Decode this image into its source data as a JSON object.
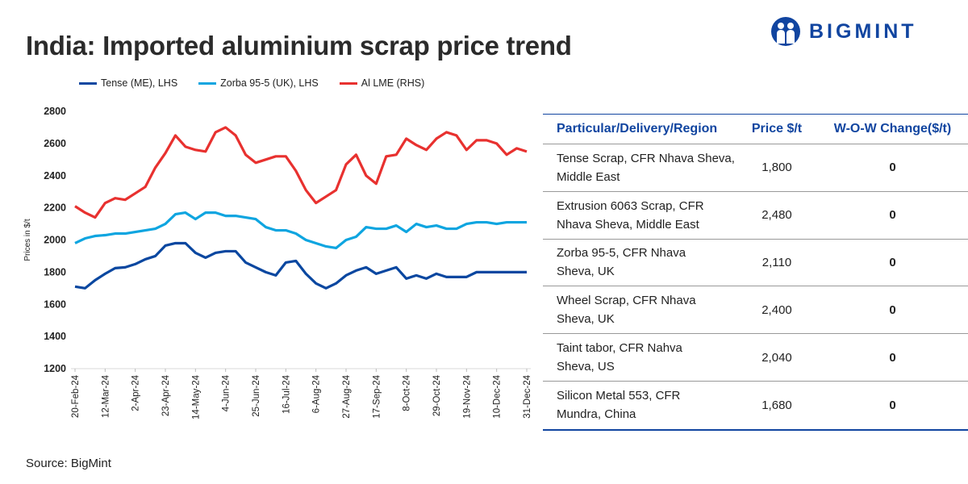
{
  "title": "India: Imported aluminium scrap price trend",
  "logo": "BIGMINT",
  "source": "Source: BigMint",
  "colors": {
    "tense": "#0a47a0",
    "zorba": "#0ea5e0",
    "lme": "#e8312f",
    "accent": "#1145a0"
  },
  "table": {
    "headers": [
      "Particular/Delivery/Region",
      "Price $/t",
      "W-O-W Change($/t)"
    ],
    "rows": [
      {
        "particular": [
          "Tense Scrap, CFR Nhava Sheva,",
          "Middle East"
        ],
        "price": "1,800",
        "change": "0"
      },
      {
        "particular": [
          "Extrusion 6063 Scrap, CFR",
          "Nhava Sheva, Middle East"
        ],
        "price": "2,480",
        "change": "0"
      },
      {
        "particular": [
          "Zorba 95-5, CFR Nhava",
          "Sheva, UK"
        ],
        "price": "2,110",
        "change": "0"
      },
      {
        "particular": [
          "Wheel Scrap, CFR Nhava",
          "Sheva, UK"
        ],
        "price": "2,400",
        "change": "0"
      },
      {
        "particular": [
          "Taint tabor, CFR Nahva",
          "Sheva, US"
        ],
        "price": "2,040",
        "change": "0"
      },
      {
        "particular": [
          "Silicon Metal 553, CFR",
          "Mundra, China"
        ],
        "price": "1,680",
        "change": "0"
      }
    ]
  },
  "chart_data": {
    "type": "line",
    "title": "India: Imported aluminium scrap price trend",
    "ylabel": "Prices in $/t",
    "ylim": [
      1200,
      2800
    ],
    "yticks": [
      1200,
      1400,
      1600,
      1800,
      2000,
      2200,
      2400,
      2600,
      2800
    ],
    "xticklabels": [
      "20-Feb-24",
      "12-Mar-24",
      "2-Apr-24",
      "23-Apr-24",
      "14-May-24",
      "4-Jun-24",
      "25-Jun-24",
      "16-Jul-24",
      "6-Aug-24",
      "27-Aug-24",
      "17-Sep-24",
      "8-Oct-24",
      "29-Oct-24",
      "19-Nov-24",
      "10-Dec-24",
      "31-Dec-24"
    ],
    "xtick_every": 3,
    "legend_position": "top",
    "series": [
      {
        "name": "Tense (ME), LHS",
        "color": "#0a47a0",
        "values": [
          1710,
          1700,
          1750,
          1790,
          1825,
          1830,
          1850,
          1880,
          1900,
          1965,
          1980,
          1980,
          1920,
          1890,
          1920,
          1930,
          1930,
          1860,
          1830,
          1800,
          1780,
          1860,
          1870,
          1790,
          1730,
          1700,
          1730,
          1780,
          1810,
          1830,
          1790,
          1810,
          1830,
          1760,
          1780,
          1760,
          1790,
          1770,
          1770,
          1770,
          1800,
          1800,
          1800,
          1800,
          1800,
          1800
        ]
      },
      {
        "name": "Zorba 95-5 (UK), LHS",
        "color": "#0ea5e0",
        "values": [
          1980,
          2010,
          2025,
          2030,
          2040,
          2040,
          2050,
          2060,
          2070,
          2100,
          2160,
          2170,
          2130,
          2170,
          2170,
          2150,
          2150,
          2140,
          2130,
          2080,
          2060,
          2060,
          2040,
          2000,
          1980,
          1960,
          1950,
          2000,
          2020,
          2080,
          2070,
          2070,
          2090,
          2050,
          2100,
          2080,
          2090,
          2070,
          2070,
          2100,
          2110,
          2110,
          2100,
          2110,
          2110,
          2110
        ]
      },
      {
        "name": "Al LME (RHS)",
        "color": "#e8312f",
        "values": [
          2210,
          2170,
          2140,
          2230,
          2260,
          2250,
          2290,
          2330,
          2450,
          2540,
          2650,
          2580,
          2560,
          2550,
          2670,
          2700,
          2650,
          2530,
          2480,
          2500,
          2520,
          2520,
          2430,
          2310,
          2230,
          2270,
          2310,
          2470,
          2530,
          2400,
          2350,
          2520,
          2530,
          2630,
          2590,
          2560,
          2630,
          2670,
          2650,
          2560,
          2620,
          2620,
          2600,
          2530,
          2570,
          2550
        ]
      }
    ]
  }
}
